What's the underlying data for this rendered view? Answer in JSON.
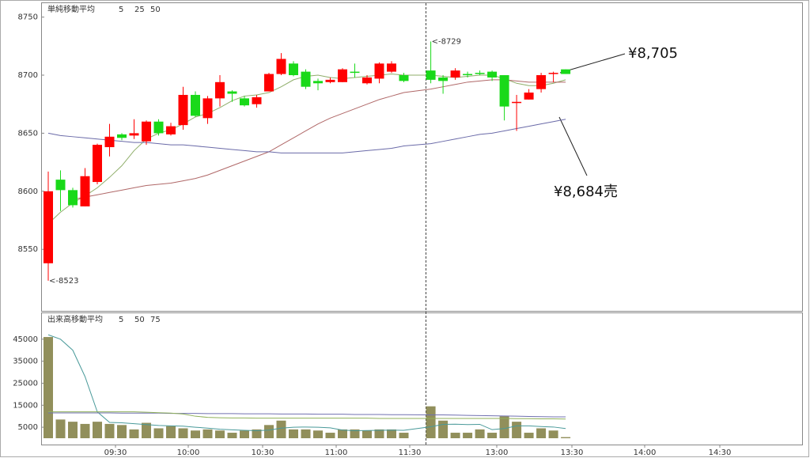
{
  "chart_data": [
    {
      "type": "candlestick",
      "title": "単純移動平均",
      "title_color": "#8a8a5a",
      "up_color": "#ff0000",
      "down_color": "#19d919",
      "open": [
        8538,
        8610,
        8601,
        8587,
        8608,
        8638,
        8649,
        8648,
        8643,
        8660,
        8649,
        8657,
        8683,
        8663,
        8680,
        8686,
        8680,
        8675,
        8686,
        8701,
        8710,
        8703,
        8695,
        8694,
        8694,
        8703,
        8693,
        8697,
        8703,
        8700,
        8704,
        8698,
        8698,
        8701,
        8702,
        8703,
        8700,
        8676,
        8679,
        8688,
        8701,
        8705
      ],
      "high": [
        8617,
        8618,
        8603,
        8620,
        8641,
        8658,
        8650,
        8662,
        8661,
        8662,
        8659,
        8690,
        8686,
        8682,
        8700,
        8687,
        8682,
        8683,
        8702,
        8719,
        8712,
        8705,
        8697,
        8698,
        8706,
        8710,
        8700,
        8711,
        8712,
        8702,
        8729,
        8700,
        8706,
        8703,
        8704,
        8704,
        8700,
        8683,
        8688,
        8702,
        8703,
        8705
      ],
      "low": [
        8523,
        8583,
        8586,
        8587,
        8606,
        8630,
        8644,
        8645,
        8640,
        8648,
        8648,
        8653,
        8664,
        8658,
        8673,
        8677,
        8673,
        8672,
        8686,
        8700,
        8699,
        8688,
        8687,
        8693,
        8694,
        8698,
        8692,
        8693,
        8702,
        8694,
        8693,
        8684,
        8696,
        8698,
        8700,
        8695,
        8661,
        8652,
        8679,
        8685,
        8694,
        8701
      ],
      "close": [
        8600,
        8601,
        8588,
        8613,
        8640,
        8647,
        8646,
        8650,
        8660,
        8650,
        8656,
        8683,
        8665,
        8680,
        8694,
        8684,
        8674,
        8681,
        8701,
        8714,
        8700,
        8690,
        8693,
        8696,
        8705,
        8702,
        8698,
        8710,
        8710,
        8695,
        8696,
        8695,
        8704,
        8700,
        8701,
        8698,
        8673,
        8677,
        8685,
        8700,
        8702,
        8701
      ],
      "series": [
        {
          "name": "5",
          "color": "#8fae6a",
          "values": [
            8572,
            8582,
            8590,
            8596,
            8603,
            8612,
            8622,
            8635,
            8645,
            8650,
            8653,
            8658,
            8664,
            8667,
            8672,
            8678,
            8682,
            8683,
            8685,
            8690,
            8696,
            8699,
            8700,
            8698,
            8697,
            8698,
            8699,
            8700,
            8701,
            8700,
            8700,
            8699,
            8698,
            8699,
            8700,
            8700,
            8697,
            8693,
            8691,
            8691,
            8693,
            8696
          ]
        },
        {
          "name": "25",
          "color": "#b06868",
          "values": [
            null,
            null,
            8593,
            8595,
            8597,
            8599,
            8601,
            8603,
            8605,
            8606,
            8607,
            8609,
            8611,
            8614,
            8618,
            8622,
            8626,
            8630,
            8634,
            8640,
            8646,
            8652,
            8658,
            8663,
            8667,
            8671,
            8675,
            8679,
            8682,
            8685,
            8688,
            8690,
            8692,
            8694,
            8695,
            8696,
            8696,
            8695,
            8694,
            8694,
            8694,
            8694
          ]
        },
        {
          "name": "50",
          "color": "#6a6aa8",
          "values": [
            8650,
            8648,
            8647,
            8646,
            8645,
            8644,
            8643,
            8642,
            8642,
            8641,
            8640,
            8640,
            8639,
            8638,
            8637,
            8636,
            8635,
            8634,
            8634,
            8633,
            8633,
            8633,
            8633,
            8633,
            8633,
            8634,
            8635,
            8636,
            8637,
            8639,
            8641,
            8643,
            8645,
            8647,
            8649,
            8650,
            8652,
            8654,
            8656,
            8658,
            8660,
            8662
          ]
        }
      ],
      "ylim": [
        8497,
        8762
      ],
      "yticks": [
        8550,
        8600,
        8650,
        8700,
        8750
      ],
      "annotations": [
        {
          "label": "<-8523",
          "value": 8523,
          "color": "#19b019"
        },
        {
          "label": "<-8729",
          "value": 8729,
          "color": "#ff3030"
        }
      ],
      "callouts": [
        {
          "label": "¥8,705",
          "value": 8705
        },
        {
          "label": "¥8,684売",
          "value": 8684
        }
      ],
      "xtick_labels": [
        "09:30",
        "10:00",
        "10:30",
        "11:00",
        "11:30",
        "13:00",
        "13:30",
        "14:00",
        "14:30"
      ]
    },
    {
      "type": "bar",
      "title": "出来高移動平均",
      "title_color": "#5a8a8a",
      "color": "#918f5b",
      "values": [
        46000,
        8500,
        7500,
        6500,
        7500,
        6500,
        6000,
        4000,
        7000,
        4500,
        5500,
        4500,
        3500,
        4000,
        3500,
        2500,
        3500,
        4000,
        6000,
        8000,
        4000,
        4000,
        3500,
        2500,
        4000,
        4000,
        3500,
        4000,
        4000,
        2500,
        14500,
        8000,
        2500,
        2500,
        4000,
        2500,
        10000,
        7500,
        2500,
        4500,
        3500,
        500
      ],
      "series": [
        {
          "name": "5",
          "color": "#4a9a9a",
          "values": [
            47000,
            45000,
            40000,
            28000,
            12000,
            7200,
            7000,
            6600,
            6200,
            5800,
            5600,
            5500,
            5000,
            4600,
            4100,
            3800,
            3600,
            3400,
            3700,
            4600,
            5000,
            5100,
            5000,
            4700,
            3700,
            3400,
            3500,
            3600,
            3700,
            3600,
            5200,
            6300,
            6400,
            6200,
            6300,
            3900,
            4400,
            5600,
            5600,
            5300,
            5100,
            4400
          ]
        },
        {
          "name": "50",
          "color": "#7070b0",
          "values": [
            11500,
            11500,
            11500,
            11500,
            11500,
            11500,
            11400,
            11400,
            11400,
            11400,
            11300,
            11300,
            11300,
            11200,
            11200,
            11200,
            11100,
            11100,
            11100,
            11000,
            11000,
            11000,
            10900,
            10900,
            10900,
            10800,
            10800,
            10800,
            10700,
            10700,
            10600,
            10600,
            10500,
            10400,
            10300,
            10200,
            10100,
            10000,
            9900,
            9800,
            9700,
            9700
          ]
        },
        {
          "name": "75",
          "color": "#8fb05a",
          "values": [
            12000,
            12000,
            12000,
            12000,
            12000,
            12000,
            12000,
            12000,
            11800,
            11600,
            11400,
            11000,
            10000,
            9500,
            9300,
            9200,
            9200,
            9100,
            9100,
            9100,
            9100,
            9100,
            9100,
            9100,
            9100,
            9100,
            9100,
            9000,
            9000,
            9000,
            9000,
            9000,
            9000,
            9000,
            9000,
            9000,
            9000,
            8900,
            8900,
            8800,
            8800,
            8700
          ]
        }
      ],
      "ylim": [
        0,
        56800
      ],
      "yticks": [
        5000,
        15000,
        25000,
        35000,
        45000
      ]
    }
  ]
}
